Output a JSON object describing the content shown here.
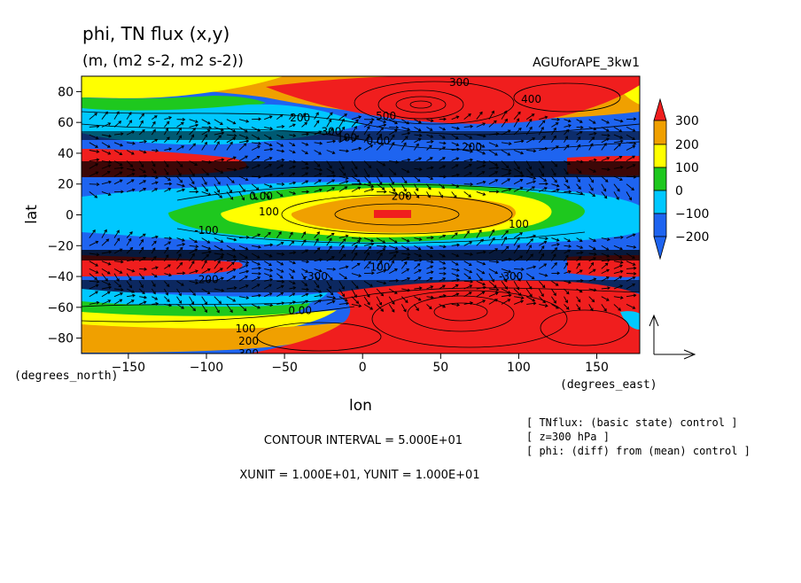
{
  "chart_data": {
    "type": "heatmap",
    "title": "phi, TN flux (x,y)",
    "subtitle": "(m, (m2 s-2, m2 s-2))",
    "run_label": "AGUforAPE_3kw1",
    "xlabel": "lon",
    "ylabel": "lat",
    "x_units": "(degrees_east)",
    "y_units": "(degrees_north)",
    "xlim": [
      -180,
      177.5
    ],
    "ylim": [
      -90,
      90
    ],
    "x_ticks": [
      -150,
      -100,
      -50,
      0,
      50,
      100,
      150
    ],
    "y_ticks": [
      80,
      60,
      40,
      20,
      0,
      -20,
      -40,
      -60,
      -80
    ],
    "color_levels": [
      {
        "label": "-200",
        "color": "#1e64f0"
      },
      {
        "label": "-100",
        "color": "#00c8ff"
      },
      {
        "label": "0",
        "color": "#1ec81e"
      },
      {
        "label": "100",
        "color": "#ffff00"
      },
      {
        "label": "200",
        "color": "#f0a000"
      },
      {
        "label": "300",
        "color": "#f01e1e"
      }
    ],
    "colorbar_ticks": [
      "300",
      "200",
      "100",
      "0",
      "-100",
      "-200"
    ],
    "contour_labels": [
      {
        "text": "500",
        "lon": 15,
        "lat": 64
      },
      {
        "text": "400",
        "lon": 108,
        "lat": 75
      },
      {
        "text": "300",
        "lon": 62,
        "lat": 86
      },
      {
        "text": "200",
        "lon": -40,
        "lat": 63
      },
      {
        "text": "300",
        "lon": -20,
        "lat": 54
      },
      {
        "text": "100",
        "lon": -10,
        "lat": 50
      },
      {
        "text": "0.00",
        "lon": 10,
        "lat": 48
      },
      {
        "text": "200",
        "lon": 70,
        "lat": 44
      },
      {
        "text": "0.00",
        "lon": -65,
        "lat": 12
      },
      {
        "text": "100",
        "lon": -60,
        "lat": 2
      },
      {
        "text": "200",
        "lon": 25,
        "lat": 12
      },
      {
        "text": "-100",
        "lon": -100,
        "lat": -10
      },
      {
        "text": "100",
        "lon": 100,
        "lat": -6
      },
      {
        "text": "-100",
        "lon": 10,
        "lat": -34
      },
      {
        "text": "-300",
        "lon": -30,
        "lat": -40
      },
      {
        "text": "-200",
        "lon": -100,
        "lat": -42
      },
      {
        "text": "0.00",
        "lon": -40,
        "lat": -62
      },
      {
        "text": "100",
        "lon": -75,
        "lat": -74
      },
      {
        "text": "200",
        "lon": -73,
        "lat": -82
      },
      {
        "text": "300",
        "lon": -73,
        "lat": -90
      },
      {
        "text": "-300",
        "lon": 95,
        "lat": -40
      }
    ],
    "reference_vector": {
      "u": 10,
      "v": 10
    },
    "contour_interval": "CONTOUR INTERVAL = 5.000E+01",
    "vector_units": "XUNIT = 1.000E+01, YUNIT = 1.000E+01",
    "notes": [
      "[ TNflux: (basic state) control ]",
      "[ z=300 hPa ]",
      "[ phi: (diff) from (mean) control ]"
    ],
    "grid": false,
    "legend": "right"
  }
}
